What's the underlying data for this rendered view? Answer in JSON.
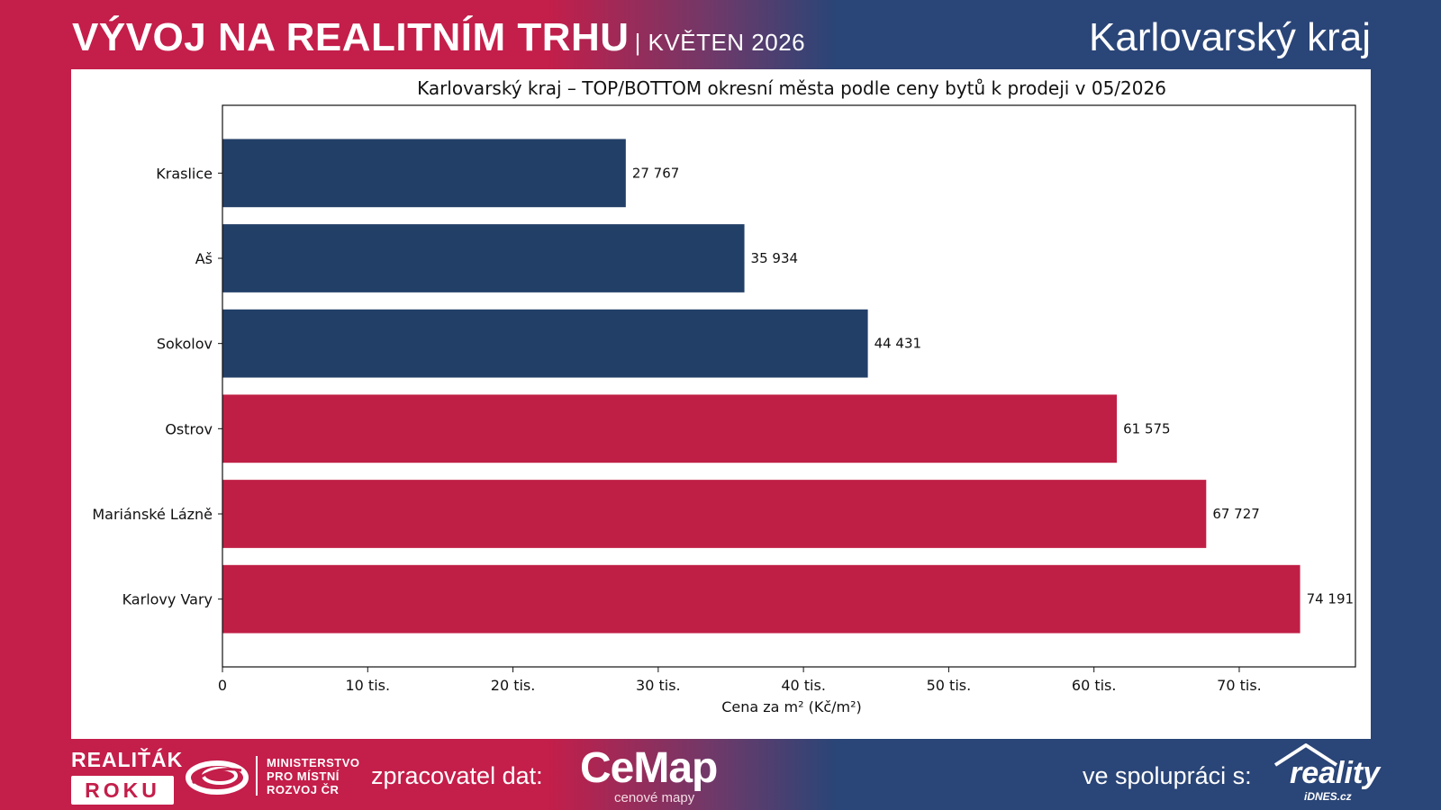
{
  "header": {
    "title": "VÝVOJ NA REALITNÍM TRHU",
    "subtitle": "| KVĚTEN 2026",
    "region": "Karlovarský kraj"
  },
  "colors": {
    "top_color": "#c01f45",
    "bottom_color": "#223f68",
    "left_brand": "#c41e4a",
    "right_brand": "#2a4577"
  },
  "chart_data": {
    "type": "bar",
    "orientation": "horizontal",
    "title": "Karlovarský kraj – TOP/BOTTOM okresní města podle ceny bytů k prodeji v 05/2026",
    "xlabel": "Cena za m² (Kč/m²)",
    "ylabel": "",
    "xlim": [
      0,
      78000
    ],
    "xticks": [
      0,
      10000,
      20000,
      30000,
      40000,
      50000,
      60000,
      70000
    ],
    "xtick_labels": [
      "0",
      "10 tis.",
      "20 tis.",
      "30 tis.",
      "40 tis.",
      "50 tis.",
      "60 tis.",
      "70 tis."
    ],
    "grid": false,
    "categories": [
      "Kraslice",
      "Aš",
      "Sokolov",
      "Ostrov",
      "Mariánské Lázně",
      "Karlovy Vary"
    ],
    "values": [
      27767,
      35934,
      44431,
      61575,
      67727,
      74191
    ],
    "value_labels": [
      "27 767",
      "35 934",
      "44 431",
      "61 575",
      "67 727",
      "74 191"
    ],
    "groups": [
      "bottom",
      "bottom",
      "bottom",
      "top",
      "top",
      "top"
    ]
  },
  "footer": {
    "brand_line1": "REALIŤÁK",
    "brand_line2": "ROKU",
    "ministry_lines": [
      "MINISTERSTVO",
      "PRO MÍSTNÍ",
      "ROZVOJ ČR"
    ],
    "processor_label": "zpracovatel dat:",
    "processor_logo": "CeMap",
    "processor_sub": "cenové mapy",
    "collab_label": "ve spolupráci s:",
    "partner_logo": "reality",
    "partner_sub": "iDNES.cz",
    "icons": [
      "ministry-swirl-icon",
      "house-roof-icon"
    ]
  }
}
